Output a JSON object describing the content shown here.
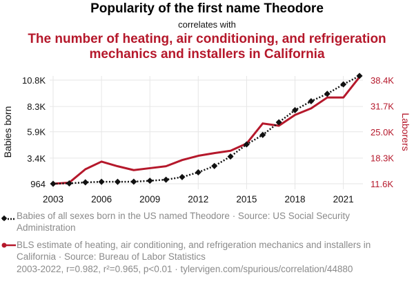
{
  "header": {
    "title": "Popularity of the first name Theodore",
    "subtitle": "correlates with",
    "title2_line1": "The number of heating, air conditioning, and refrigeration",
    "title2_line2": "mechanics and installers in California"
  },
  "legend": {
    "series1": "Babies of all sexes born in the US named Theodore · Source: US Social Security Administration",
    "series2": "BLS estimate of heating, air conditioning, and refrigeration mechanics and installers in California · Source: Bureau of Labor Statistics"
  },
  "footer": "2003-2022, r=0.982, r²=0.965, p<0.01 · tylervigen.com/spurious/correlation/44880",
  "colors": {
    "series1": "#111111",
    "series2": "#b5182b",
    "grid": "#e6e6e6"
  },
  "chart_data": {
    "type": "line",
    "title": "Popularity of the first name Theodore",
    "x": [
      2003,
      2004,
      2005,
      2006,
      2007,
      2008,
      2009,
      2010,
      2011,
      2012,
      2013,
      2014,
      2015,
      2016,
      2017,
      2018,
      2019,
      2020,
      2021,
      2022
    ],
    "x_ticks": [
      "2003",
      "2006",
      "2009",
      "2012",
      "2015",
      "2018",
      "2021"
    ],
    "xlim": [
      2003,
      2022
    ],
    "left_axis": {
      "label": "Babies born",
      "ticks": [
        "964",
        "3.4K",
        "5.9K",
        "8.3K",
        "10.8K"
      ],
      "tick_values": [
        964,
        3400,
        5900,
        8300,
        10800
      ],
      "ylim": [
        964,
        10800
      ]
    },
    "right_axis": {
      "label": "Laborers",
      "ticks": [
        "11.6K",
        "18.3K",
        "25.0K",
        "31.7K",
        "38.4K"
      ],
      "tick_values": [
        11600,
        18300,
        25000,
        31700,
        38400
      ],
      "ylim": [
        11600,
        38400
      ]
    },
    "series": [
      {
        "name": "Babies born (Theodore)",
        "axis": "left",
        "marker": "diamond",
        "style": "dotted",
        "values": [
          964,
          1000,
          1100,
          1150,
          1150,
          1160,
          1250,
          1350,
          1600,
          2050,
          2650,
          3550,
          4700,
          5600,
          6800,
          7950,
          8800,
          9500,
          10400,
          11200
        ]
      },
      {
        "name": "HVAC mechanics and installers in California",
        "axis": "right",
        "marker": "none",
        "style": "solid",
        "values": [
          11600,
          11900,
          15350,
          17330,
          16130,
          15130,
          15630,
          16130,
          17730,
          18830,
          19530,
          20130,
          22000,
          27200,
          26600,
          29400,
          31100,
          33900,
          33900,
          39200
        ]
      }
    ]
  }
}
